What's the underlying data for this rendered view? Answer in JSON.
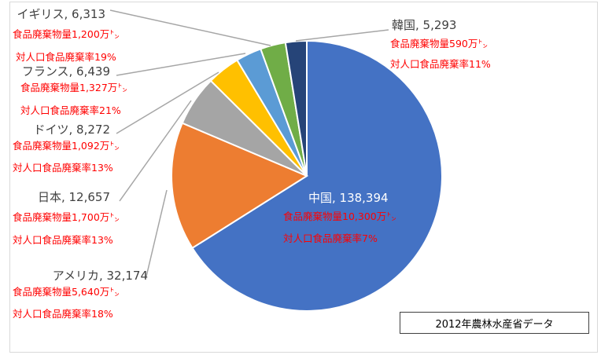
{
  "chart_data": {
    "type": "pie",
    "start_angle_deg": 0,
    "direction": "clockwise",
    "slices": [
      {
        "name": "中国",
        "value": 138394,
        "waste_label": "食品廃棄物量10,300万㌧",
        "rate_label": "対人口食品廃棄率7%",
        "color": "#4472c4"
      },
      {
        "name": "アメリカ",
        "value": 32174,
        "waste_label": "食品廃棄物量5,640万㌧",
        "rate_label": "対人口食品廃棄率18%",
        "color": "#ed7d31"
      },
      {
        "name": "日本",
        "value": 12657,
        "waste_label": "食品廃棄物量1,700万㌧",
        "rate_label": "対人口食品廃棄率13%",
        "color": "#a5a5a5"
      },
      {
        "name": "ドイツ",
        "value": 8272,
        "waste_label": "食品廃棄物量1,092万㌧",
        "rate_label": "対人口食品廃棄率13%",
        "color": "#ffc000"
      },
      {
        "name": "フランス",
        "value": 6439,
        "waste_label": "食品廃棄物量1,327万㌧",
        "rate_label": "対人口食品廃棄率21%",
        "color": "#5b9bd5"
      },
      {
        "name": "イギリス",
        "value": 6313,
        "waste_label": "食品廃棄物量1,200万㌧",
        "rate_label": "対人口食品廃棄率19%",
        "color": "#70ad47"
      },
      {
        "name": "韓国",
        "value": 5293,
        "waste_label": "食品廃棄物量590万㌧",
        "rate_label": "対人口食品廃棄率11%",
        "color": "#264478"
      }
    ],
    "source_note": "2012年農林水産省データ"
  }
}
